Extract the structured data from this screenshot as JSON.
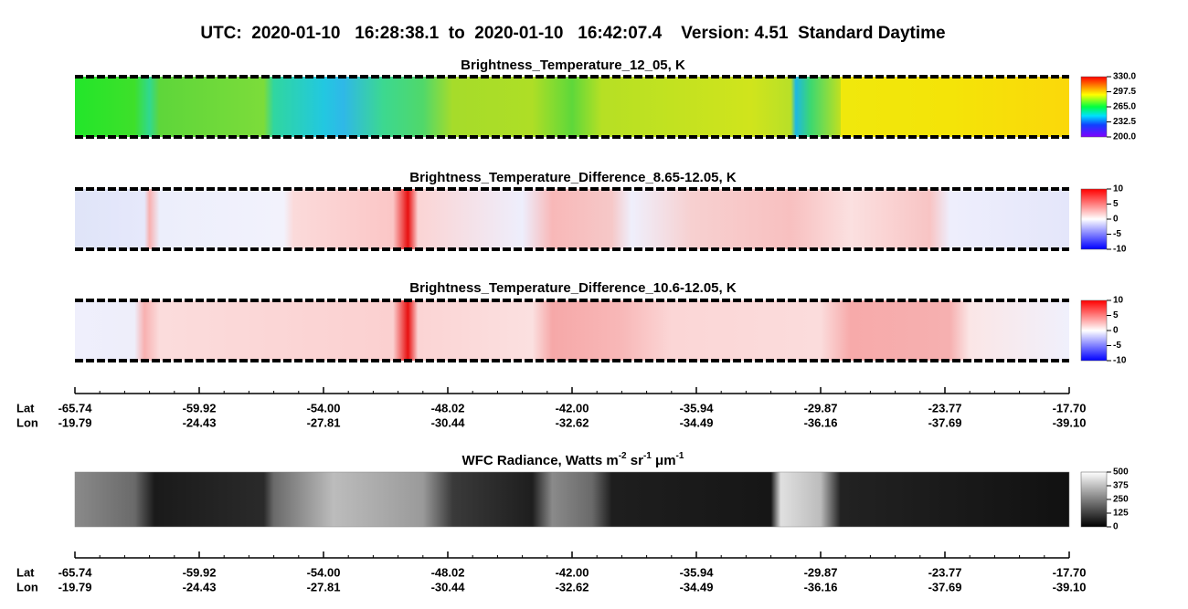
{
  "title": "UTC:  2020-01-10   16:28:38.1  to  2020-01-10   16:42:07.4    Version: 4.51  Standard Daytime",
  "panels": [
    {
      "title": "Brightness_Temperature_12_05, K",
      "colorbar": [
        "330.0",
        "297.5",
        "265.0",
        "232.5",
        "200.0"
      ]
    },
    {
      "title": "Brightness_Temperature_Difference_8.65-12.05, K",
      "colorbar": [
        "10",
        "5",
        "0",
        "-5",
        "-10"
      ]
    },
    {
      "title": "Brightness_Temperature_Difference_10.6-12.05, K",
      "colorbar": [
        "10",
        "5",
        "0",
        "-5",
        "-10"
      ]
    }
  ],
  "wfc_panel": {
    "title": {
      "text": "WFC Radiance, Watts m",
      "sup1": "-2",
      "mid1": " sr",
      "sup2": "-1",
      "mid2": " μm",
      "sup3": "-1"
    },
    "colorbar": [
      "500",
      "375",
      "250",
      "125",
      "0"
    ]
  },
  "axes": [
    {
      "lat_label": "Lat",
      "lon_label": "Lon",
      "lat": [
        "-65.74",
        "-59.92",
        "-54.00",
        "-48.02",
        "-42.00",
        "-35.94",
        "-29.87",
        "-23.77",
        "-17.70"
      ],
      "lon": [
        "-19.79",
        "-24.43",
        "-27.81",
        "-30.44",
        "-32.62",
        "-34.49",
        "-36.16",
        "-37.69",
        "-39.10"
      ]
    },
    {
      "lat_label": "Lat",
      "lon_label": "Lon",
      "lat": [
        "-65.74",
        "-59.92",
        "-54.00",
        "-48.02",
        "-42.00",
        "-35.94",
        "-29.87",
        "-23.77",
        "-17.70"
      ],
      "lon": [
        "-19.79",
        "-24.43",
        "-27.81",
        "-30.44",
        "-32.62",
        "-34.49",
        "-36.16",
        "-37.69",
        "-39.10"
      ]
    }
  ]
}
